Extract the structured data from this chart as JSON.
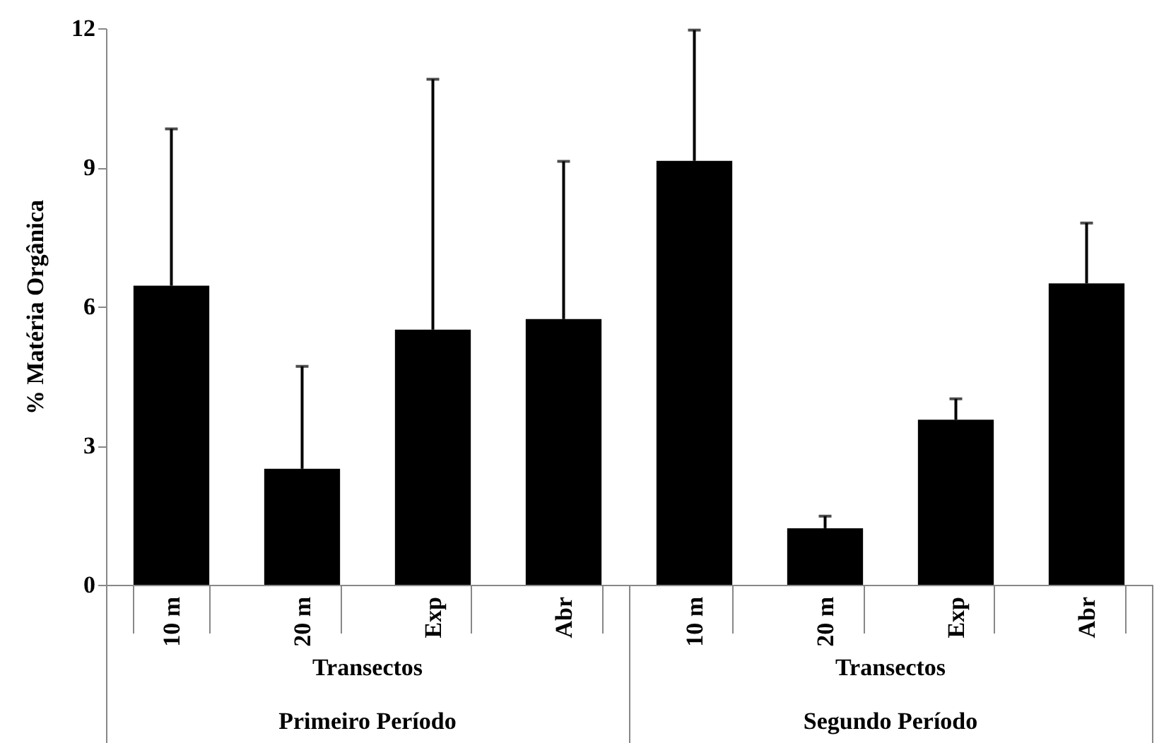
{
  "chart_data": {
    "type": "bar",
    "ylabel": "% Matéria Orgânica",
    "categories": [
      "10 m",
      "20 m",
      "Exp",
      "Abr",
      "10 m",
      "20 m",
      "Exp",
      "Abr"
    ],
    "values": [
      6.45,
      2.5,
      5.5,
      5.73,
      9.14,
      1.22,
      3.56,
      6.5
    ],
    "errors": [
      [
        6.45,
        9.83
      ],
      [
        2.5,
        4.71
      ],
      [
        5.5,
        10.9
      ],
      [
        5.73,
        9.13
      ],
      [
        9.14,
        11.96
      ],
      [
        1.22,
        1.48
      ],
      [
        3.56,
        4.01
      ],
      [
        6.5,
        7.8
      ]
    ],
    "color": "#000000",
    "ylim": [
      0,
      12
    ],
    "yticks": [
      0,
      3,
      6,
      9,
      12
    ],
    "grid": false,
    "annotations": [
      "Transectos",
      "Transectos",
      "Primeiro Período",
      "Segundo Período"
    ]
  }
}
